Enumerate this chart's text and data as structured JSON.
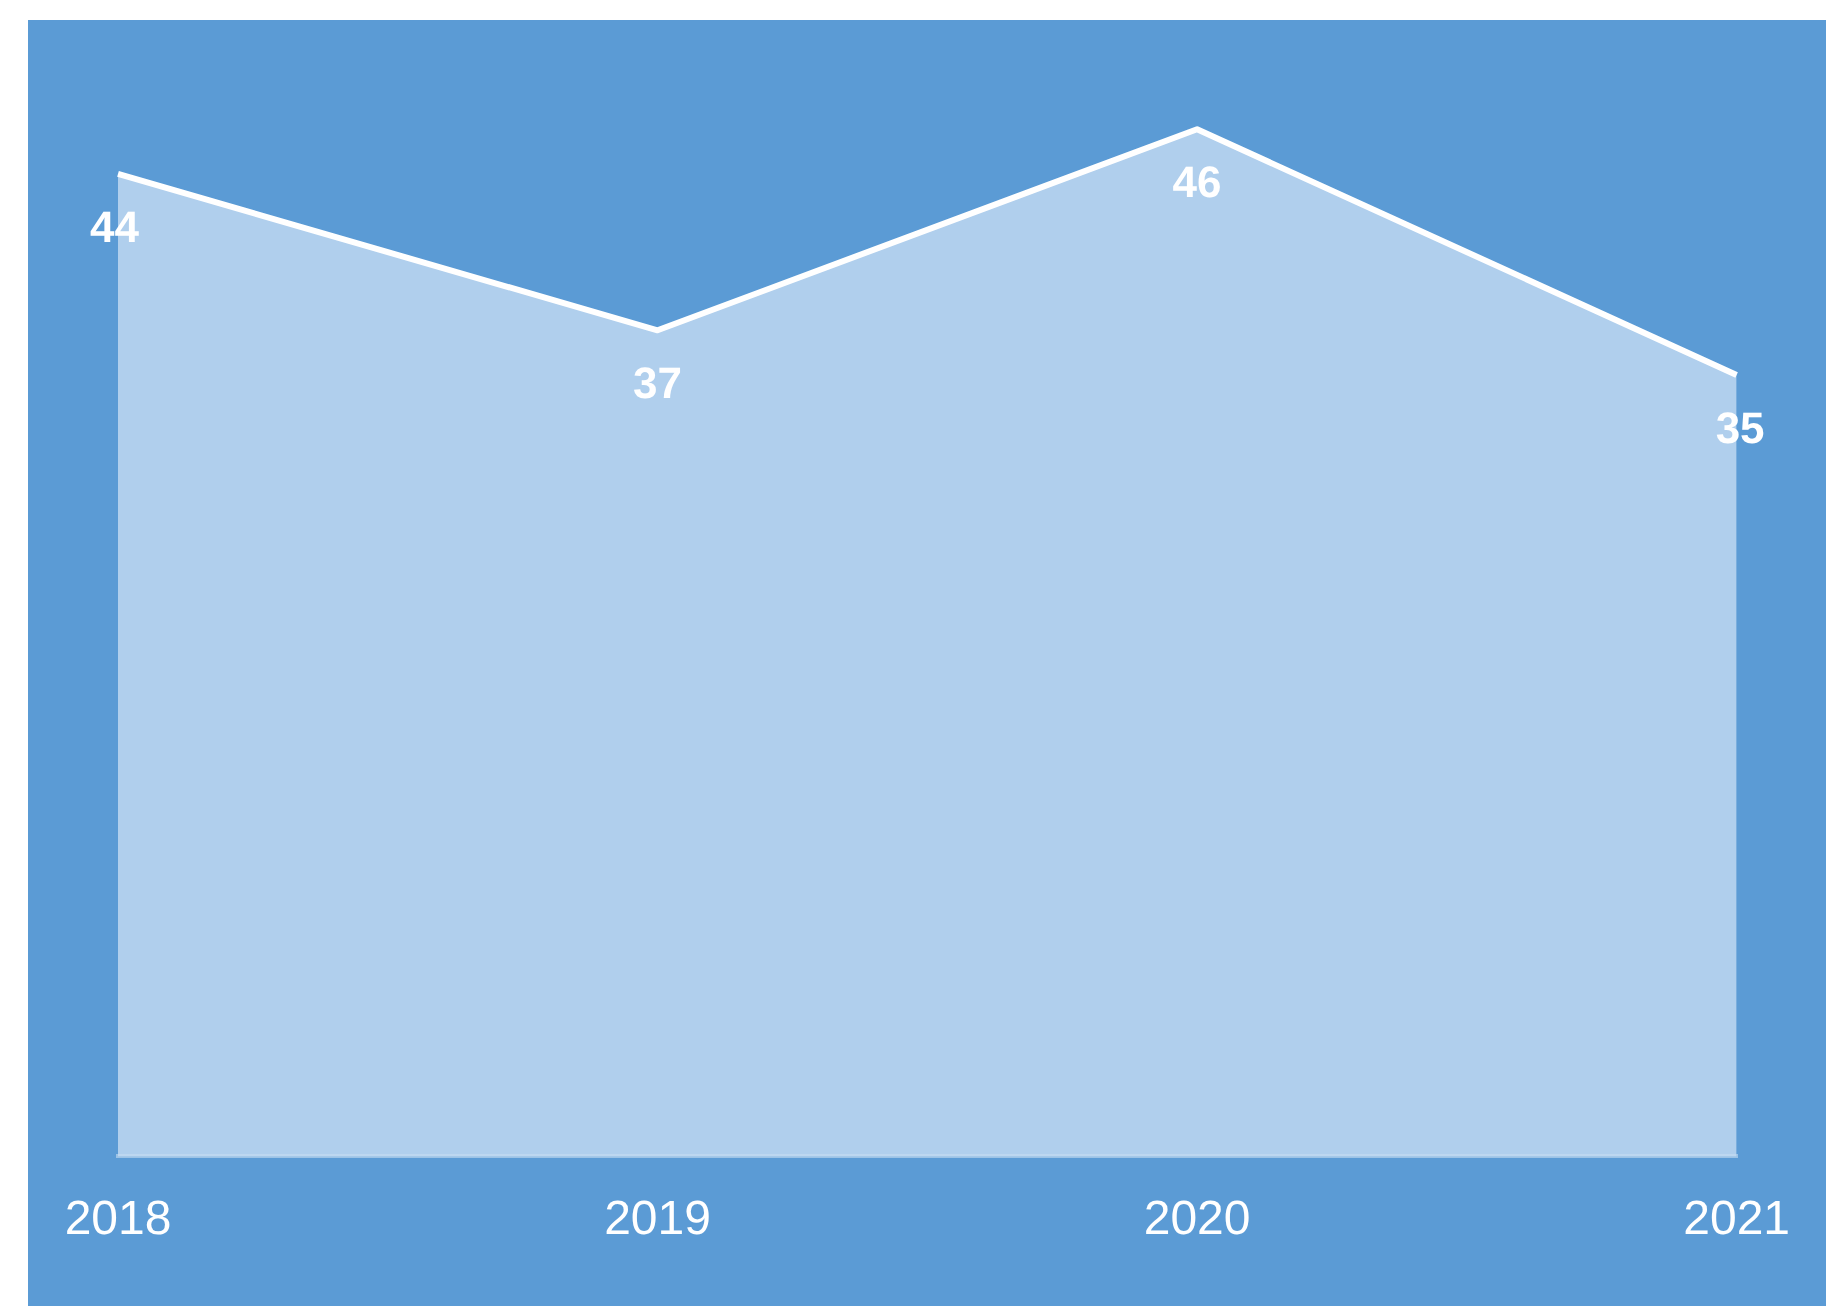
{
  "chart_data": {
    "type": "area",
    "categories": [
      "2018",
      "2019",
      "2020",
      "2021"
    ],
    "values": [
      44,
      37,
      46,
      35
    ],
    "color": "#c5dcf2",
    "tick_labels": "x",
    "grid": false,
    "legend": false,
    "data_labels": true,
    "marker": "none"
  }
}
